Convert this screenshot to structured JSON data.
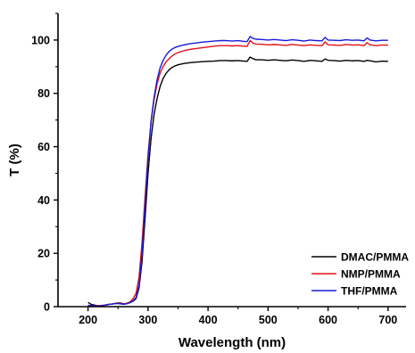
{
  "chart_data": {
    "type": "line",
    "xlabel": "Wavelength (nm)",
    "ylabel": "T (%)",
    "xlim": [
      150,
      730
    ],
    "ylim": [
      0,
      110
    ],
    "xticks": [
      200,
      300,
      400,
      500,
      600,
      700
    ],
    "yticks": [
      0,
      20,
      40,
      60,
      80,
      100
    ],
    "grid": false,
    "legend_position": "bottom-right",
    "series": [
      {
        "name": "DMAC/PMMA",
        "color": "#000000",
        "points": [
          [
            200,
            1.6
          ],
          [
            205,
            0.9
          ],
          [
            210,
            0.6
          ],
          [
            215,
            0.4
          ],
          [
            220,
            0.3
          ],
          [
            225,
            0.4
          ],
          [
            230,
            0.7
          ],
          [
            235,
            0.9
          ],
          [
            240,
            1.0
          ],
          [
            245,
            1.2
          ],
          [
            250,
            1.4
          ],
          [
            255,
            1.3
          ],
          [
            260,
            1.0
          ],
          [
            265,
            1.2
          ],
          [
            270,
            1.5
          ],
          [
            275,
            2.0
          ],
          [
            280,
            3.0
          ],
          [
            285,
            7.0
          ],
          [
            290,
            17.0
          ],
          [
            295,
            33.0
          ],
          [
            300,
            50.0
          ],
          [
            305,
            63.0
          ],
          [
            310,
            72.0
          ],
          [
            315,
            78.0
          ],
          [
            320,
            82.5
          ],
          [
            325,
            85.5
          ],
          [
            330,
            87.5
          ],
          [
            335,
            88.8
          ],
          [
            340,
            89.7
          ],
          [
            345,
            90.3
          ],
          [
            350,
            90.7
          ],
          [
            360,
            91.2
          ],
          [
            370,
            91.5
          ],
          [
            380,
            91.7
          ],
          [
            390,
            91.9
          ],
          [
            400,
            92.0
          ],
          [
            410,
            92.1
          ],
          [
            420,
            92.3
          ],
          [
            430,
            92.3
          ],
          [
            440,
            92.2
          ],
          [
            450,
            92.3
          ],
          [
            460,
            92.1
          ],
          [
            465,
            92.0
          ],
          [
            470,
            93.6
          ],
          [
            475,
            93.0
          ],
          [
            480,
            92.6
          ],
          [
            490,
            92.6
          ],
          [
            500,
            92.4
          ],
          [
            510,
            92.6
          ],
          [
            520,
            92.4
          ],
          [
            530,
            92.2
          ],
          [
            540,
            92.5
          ],
          [
            550,
            92.3
          ],
          [
            560,
            92.0
          ],
          [
            570,
            92.4
          ],
          [
            580,
            92.2
          ],
          [
            590,
            92.0
          ],
          [
            595,
            92.9
          ],
          [
            600,
            92.4
          ],
          [
            610,
            92.3
          ],
          [
            620,
            92.1
          ],
          [
            630,
            92.4
          ],
          [
            640,
            92.2
          ],
          [
            650,
            92.3
          ],
          [
            660,
            92.0
          ],
          [
            665,
            92.4
          ],
          [
            670,
            92.2
          ],
          [
            680,
            91.8
          ],
          [
            690,
            92.1
          ],
          [
            700,
            92.0
          ]
        ]
      },
      {
        "name": "NMP/PMMA",
        "color": "#e0121a",
        "points": [
          [
            200,
            0.4
          ],
          [
            205,
            0.4
          ],
          [
            210,
            0.3
          ],
          [
            215,
            0.3
          ],
          [
            220,
            0.4
          ],
          [
            225,
            0.5
          ],
          [
            230,
            0.6
          ],
          [
            235,
            0.8
          ],
          [
            240,
            1.0
          ],
          [
            245,
            1.2
          ],
          [
            250,
            1.3
          ],
          [
            255,
            1.1
          ],
          [
            260,
            1.0
          ],
          [
            265,
            1.3
          ],
          [
            270,
            1.8
          ],
          [
            275,
            3.0
          ],
          [
            280,
            5.0
          ],
          [
            285,
            11.0
          ],
          [
            290,
            24.0
          ],
          [
            295,
            41.0
          ],
          [
            300,
            57.0
          ],
          [
            305,
            69.0
          ],
          [
            310,
            77.5
          ],
          [
            315,
            83.5
          ],
          [
            320,
            87.5
          ],
          [
            325,
            90.0
          ],
          [
            330,
            91.8
          ],
          [
            335,
            93.0
          ],
          [
            340,
            94.0
          ],
          [
            345,
            94.8
          ],
          [
            350,
            95.3
          ],
          [
            360,
            96.0
          ],
          [
            370,
            96.5
          ],
          [
            380,
            96.8
          ],
          [
            390,
            97.1
          ],
          [
            400,
            97.4
          ],
          [
            410,
            97.7
          ],
          [
            420,
            97.9
          ],
          [
            430,
            97.9
          ],
          [
            440,
            97.8
          ],
          [
            450,
            97.9
          ],
          [
            460,
            97.7
          ],
          [
            465,
            97.6
          ],
          [
            470,
            99.8
          ],
          [
            475,
            98.8
          ],
          [
            480,
            98.5
          ],
          [
            490,
            98.4
          ],
          [
            500,
            98.2
          ],
          [
            510,
            98.3
          ],
          [
            520,
            98.2
          ],
          [
            530,
            98.0
          ],
          [
            540,
            98.3
          ],
          [
            550,
            98.1
          ],
          [
            560,
            97.9
          ],
          [
            570,
            98.2
          ],
          [
            580,
            98.0
          ],
          [
            590,
            97.9
          ],
          [
            595,
            99.3
          ],
          [
            600,
            98.2
          ],
          [
            610,
            98.1
          ],
          [
            620,
            98.0
          ],
          [
            630,
            98.3
          ],
          [
            640,
            98.1
          ],
          [
            650,
            98.2
          ],
          [
            660,
            97.9
          ],
          [
            665,
            99.0
          ],
          [
            670,
            98.2
          ],
          [
            680,
            97.9
          ],
          [
            690,
            98.1
          ],
          [
            700,
            98.1
          ]
        ]
      },
      {
        "name": "THF/PMMA",
        "color": "#1a1adc",
        "points": [
          [
            200,
            0.5
          ],
          [
            205,
            0.4
          ],
          [
            210,
            0.3
          ],
          [
            215,
            0.2
          ],
          [
            220,
            0.3
          ],
          [
            225,
            0.4
          ],
          [
            230,
            0.6
          ],
          [
            235,
            0.8
          ],
          [
            240,
            1.0
          ],
          [
            245,
            1.1
          ],
          [
            250,
            1.2
          ],
          [
            255,
            1.0
          ],
          [
            260,
            0.9
          ],
          [
            265,
            1.1
          ],
          [
            270,
            1.5
          ],
          [
            275,
            2.2
          ],
          [
            280,
            3.5
          ],
          [
            285,
            8.0
          ],
          [
            290,
            20.0
          ],
          [
            295,
            38.0
          ],
          [
            300,
            56.0
          ],
          [
            305,
            69.5
          ],
          [
            310,
            78.5
          ],
          [
            315,
            85.0
          ],
          [
            320,
            89.5
          ],
          [
            325,
            92.3
          ],
          [
            330,
            94.3
          ],
          [
            335,
            95.7
          ],
          [
            340,
            96.6
          ],
          [
            345,
            97.2
          ],
          [
            350,
            97.6
          ],
          [
            360,
            98.2
          ],
          [
            370,
            98.6
          ],
          [
            380,
            98.9
          ],
          [
            390,
            99.2
          ],
          [
            400,
            99.4
          ],
          [
            410,
            99.6
          ],
          [
            420,
            99.8
          ],
          [
            430,
            99.8
          ],
          [
            440,
            99.6
          ],
          [
            450,
            99.8
          ],
          [
            460,
            99.5
          ],
          [
            465,
            99.4
          ],
          [
            470,
            101.3
          ],
          [
            475,
            100.6
          ],
          [
            480,
            100.3
          ],
          [
            490,
            100.2
          ],
          [
            500,
            100.0
          ],
          [
            510,
            100.2
          ],
          [
            520,
            100.0
          ],
          [
            530,
            99.8
          ],
          [
            540,
            100.1
          ],
          [
            550,
            99.9
          ],
          [
            560,
            99.6
          ],
          [
            570,
            100.0
          ],
          [
            580,
            99.8
          ],
          [
            590,
            99.7
          ],
          [
            595,
            101.0
          ],
          [
            600,
            100.0
          ],
          [
            610,
            99.9
          ],
          [
            620,
            99.8
          ],
          [
            630,
            100.1
          ],
          [
            640,
            99.9
          ],
          [
            650,
            100.0
          ],
          [
            660,
            99.7
          ],
          [
            665,
            100.8
          ],
          [
            670,
            100.0
          ],
          [
            680,
            99.7
          ],
          [
            690,
            99.9
          ],
          [
            700,
            99.9
          ]
        ]
      }
    ]
  }
}
